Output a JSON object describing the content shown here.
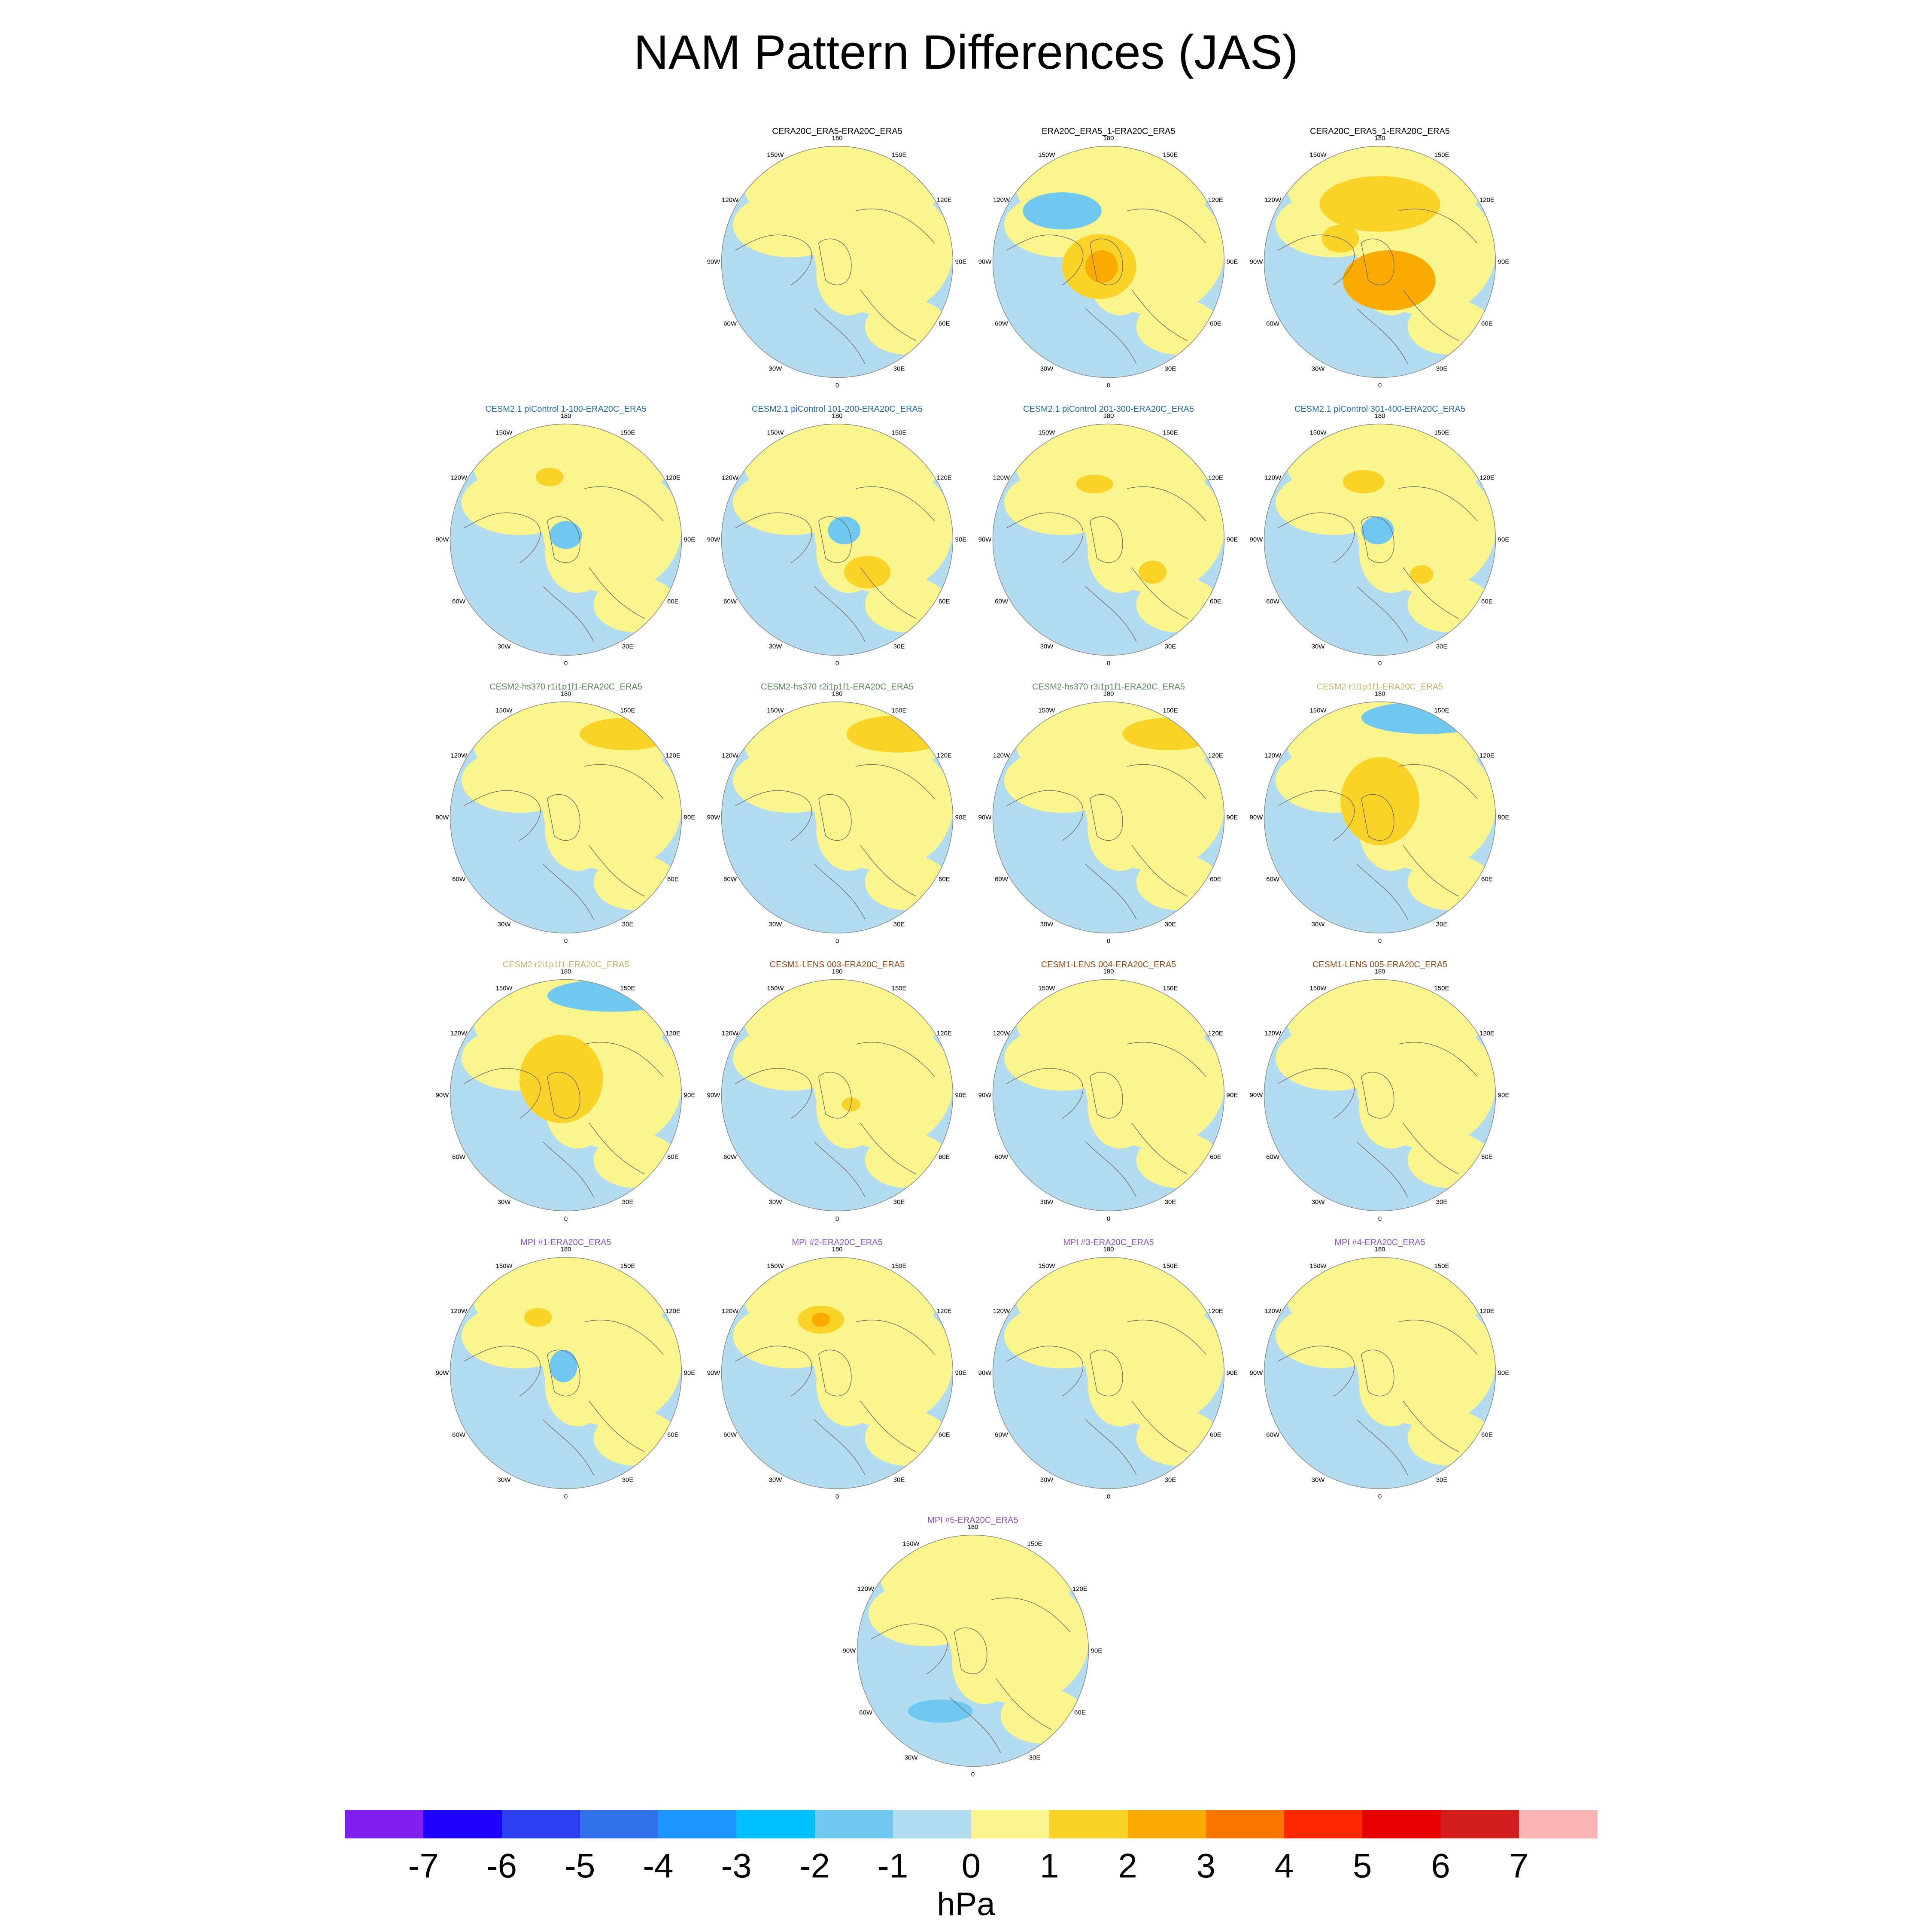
{
  "title": "NAM Pattern Differences (JAS)",
  "colors": {
    "reference": "#000000",
    "cesm21_picontrol": "#1f6fa8",
    "cesm2_hs370": "#5b8a5b",
    "cesm2_tuned": "#c8b46a",
    "cesm1_lens": "#9b4a16",
    "mpi": "#8a52cc"
  },
  "map_labels": {
    "top": "180",
    "top_left": "150W",
    "top_right": "150E",
    "upper_left": "120W",
    "upper_right": "120E",
    "left": "90W",
    "right": "90E",
    "lower_left": "60W",
    "lower_right": "60E",
    "bottom_left": "30W",
    "bottom_right": "30E",
    "bottom": "0"
  },
  "panels": [
    {
      "title": "CERA20C_ERA5-ERA20C_ERA5",
      "color_key": "reference",
      "anomalies": []
    },
    {
      "title": "ERA20C_ERA5_1-ERA20C_ERA5",
      "color_key": "reference",
      "anomalies": [
        {
          "kind": "neg1",
          "u": 0.3,
          "v": 0.28,
          "rx": 0.17,
          "ry": 0.08
        },
        {
          "kind": "pos1",
          "u": 0.46,
          "v": 0.52,
          "rx": 0.16,
          "ry": 0.14
        },
        {
          "kind": "pos2",
          "u": 0.47,
          "v": 0.52,
          "rx": 0.07,
          "ry": 0.07
        }
      ]
    },
    {
      "title": "CERA20C_ERA5_1-ERA20C_ERA5",
      "color_key": "reference",
      "anomalies": [
        {
          "kind": "pos1",
          "u": 0.5,
          "v": 0.25,
          "rx": 0.26,
          "ry": 0.12
        },
        {
          "kind": "pos2",
          "u": 0.54,
          "v": 0.58,
          "rx": 0.2,
          "ry": 0.13
        },
        {
          "kind": "pos1",
          "u": 0.33,
          "v": 0.4,
          "rx": 0.08,
          "ry": 0.06
        }
      ]
    },
    {
      "title": "CESM2.1 piControl 1-100-ERA20C_ERA5",
      "color_key": "cesm21_picontrol",
      "anomalies": [
        {
          "kind": "pos1",
          "u": 0.43,
          "v": 0.23,
          "rx": 0.06,
          "ry": 0.04
        },
        {
          "kind": "neg1",
          "u": 0.5,
          "v": 0.48,
          "rx": 0.07,
          "ry": 0.06
        }
      ]
    },
    {
      "title": "CESM2.1 piControl 101-200-ERA20C_ERA5",
      "color_key": "cesm21_picontrol",
      "anomalies": [
        {
          "kind": "neg1",
          "u": 0.53,
          "v": 0.46,
          "rx": 0.07,
          "ry": 0.06
        },
        {
          "kind": "pos1",
          "u": 0.63,
          "v": 0.64,
          "rx": 0.1,
          "ry": 0.07
        }
      ]
    },
    {
      "title": "CESM2.1 piControl 201-300-ERA20C_ERA5",
      "color_key": "cesm21_picontrol",
      "anomalies": [
        {
          "kind": "pos1",
          "u": 0.44,
          "v": 0.26,
          "rx": 0.08,
          "ry": 0.04
        },
        {
          "kind": "pos1",
          "u": 0.69,
          "v": 0.64,
          "rx": 0.06,
          "ry": 0.05
        }
      ]
    },
    {
      "title": "CESM2.1 piControl 301-400-ERA20C_ERA5",
      "color_key": "cesm21_picontrol",
      "anomalies": [
        {
          "kind": "pos1",
          "u": 0.43,
          "v": 0.25,
          "rx": 0.09,
          "ry": 0.05
        },
        {
          "kind": "neg1",
          "u": 0.49,
          "v": 0.46,
          "rx": 0.07,
          "ry": 0.06
        },
        {
          "kind": "pos1",
          "u": 0.68,
          "v": 0.65,
          "rx": 0.05,
          "ry": 0.04
        }
      ]
    },
    {
      "title": "CESM2-hs370 r1i1p1f1-ERA20C_ERA5",
      "color_key": "cesm2_hs370",
      "anomalies": [
        {
          "kind": "pos1",
          "u": 0.76,
          "v": 0.14,
          "rx": 0.2,
          "ry": 0.07
        }
      ]
    },
    {
      "title": "CESM2-hs370 r2i1p1f1-ERA20C_ERA5",
      "color_key": "cesm2_hs370",
      "anomalies": [
        {
          "kind": "pos1",
          "u": 0.76,
          "v": 0.14,
          "rx": 0.22,
          "ry": 0.08
        }
      ]
    },
    {
      "title": "CESM2-hs370 r3i1p1f1-ERA20C_ERA5",
      "color_key": "cesm2_hs370",
      "anomalies": [
        {
          "kind": "pos1",
          "u": 0.76,
          "v": 0.14,
          "rx": 0.2,
          "ry": 0.07
        }
      ]
    },
    {
      "title": "CESM2 r1i1p1f1-ERA20C_ERA5",
      "color_key": "cesm2_tuned",
      "anomalies": [
        {
          "kind": "neg1",
          "u": 0.7,
          "v": 0.07,
          "rx": 0.28,
          "ry": 0.07
        },
        {
          "kind": "pos1",
          "u": 0.5,
          "v": 0.43,
          "rx": 0.17,
          "ry": 0.19
        }
      ]
    },
    {
      "title": "CESM2 r2i1p1f1-ERA20C_ERA5",
      "color_key": "cesm2_tuned",
      "anomalies": [
        {
          "kind": "neg1",
          "u": 0.7,
          "v": 0.07,
          "rx": 0.28,
          "ry": 0.07
        },
        {
          "kind": "pos1",
          "u": 0.48,
          "v": 0.43,
          "rx": 0.18,
          "ry": 0.19
        }
      ]
    },
    {
      "title": "CESM1-LENS 003-ERA20C_ERA5",
      "color_key": "cesm1_lens",
      "anomalies": [
        {
          "kind": "pos1",
          "u": 0.56,
          "v": 0.54,
          "rx": 0.04,
          "ry": 0.03
        }
      ]
    },
    {
      "title": "CESM1-LENS 004-ERA20C_ERA5",
      "color_key": "cesm1_lens",
      "anomalies": []
    },
    {
      "title": "CESM1-LENS 005-ERA20C_ERA5",
      "color_key": "cesm1_lens",
      "anomalies": []
    },
    {
      "title": "MPI #1-ERA20C_ERA5",
      "color_key": "mpi",
      "anomalies": [
        {
          "kind": "pos1",
          "u": 0.38,
          "v": 0.26,
          "rx": 0.06,
          "ry": 0.04
        },
        {
          "kind": "neg1",
          "u": 0.49,
          "v": 0.47,
          "rx": 0.06,
          "ry": 0.07
        }
      ]
    },
    {
      "title": "MPI #2-ERA20C_ERA5",
      "color_key": "mpi",
      "anomalies": [
        {
          "kind": "pos1",
          "u": 0.43,
          "v": 0.27,
          "rx": 0.1,
          "ry": 0.06
        },
        {
          "kind": "pos2",
          "u": 0.43,
          "v": 0.27,
          "rx": 0.04,
          "ry": 0.03
        }
      ]
    },
    {
      "title": "MPI #3-ERA20C_ERA5",
      "color_key": "mpi",
      "anomalies": []
    },
    {
      "title": "MPI #4-ERA20C_ERA5",
      "color_key": "mpi",
      "anomalies": []
    },
    {
      "title": "MPI #5-ERA20C_ERA5",
      "color_key": "mpi",
      "anomalies": [
        {
          "kind": "neg1",
          "u": 0.36,
          "v": 0.76,
          "rx": 0.14,
          "ry": 0.05
        }
      ]
    }
  ],
  "colorbar": {
    "units": "hPa",
    "colors": [
      "#8020f0",
      "#1e00ff",
      "#2a40f0",
      "#3070e8",
      "#1e96ff",
      "#00bfff",
      "#70c8f0",
      "#b4dcf0",
      "#faf58c",
      "#fad228",
      "#faaa00",
      "#fa7800",
      "#ff2800",
      "#e60000",
      "#d21e1e",
      "#fab4b4"
    ],
    "ticks": [
      "-7",
      "-6",
      "-5",
      "-4",
      "-3",
      "-2",
      "-1",
      "0",
      "1",
      "2",
      "3",
      "4",
      "5",
      "6",
      "7"
    ]
  }
}
